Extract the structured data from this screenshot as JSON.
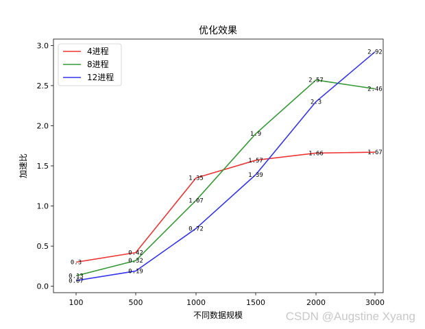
{
  "chart_data": {
    "type": "line",
    "title": "优化效果",
    "xlabel": "不同数据规模",
    "ylabel": "加速比",
    "categories": [
      "100",
      "500",
      "1000",
      "1500",
      "2000",
      "3000"
    ],
    "ylim": [
      -0.08,
      3.08
    ],
    "yticks": [
      "0.0",
      "0.5",
      "1.0",
      "1.5",
      "2.0",
      "2.5",
      "3.0"
    ],
    "legend_position": "top-left",
    "grid": false,
    "series": [
      {
        "name": "4进程",
        "color": "#ee3333",
        "values": [
          0.3,
          0.42,
          1.35,
          1.57,
          1.66,
          1.67
        ],
        "labels": [
          "0.3",
          "0.42",
          "1.35",
          "1.57",
          "1.66",
          "1.67"
        ]
      },
      {
        "name": "8进程",
        "color": "#339933",
        "values": [
          0.13,
          0.32,
          1.07,
          1.9,
          2.57,
          2.46
        ],
        "labels": [
          "0.13",
          "0.32",
          "1.07",
          "1.9",
          "2.57",
          "2.46"
        ]
      },
      {
        "name": "12进程",
        "color": "#3333ee",
        "values": [
          0.07,
          0.19,
          0.72,
          1.39,
          2.3,
          2.92
        ],
        "labels": [
          "0.07",
          "0.19",
          "0.72",
          "1.39",
          "2.3",
          "2.92"
        ]
      }
    ]
  },
  "watermark": "CSDN @Augstine Xyang"
}
